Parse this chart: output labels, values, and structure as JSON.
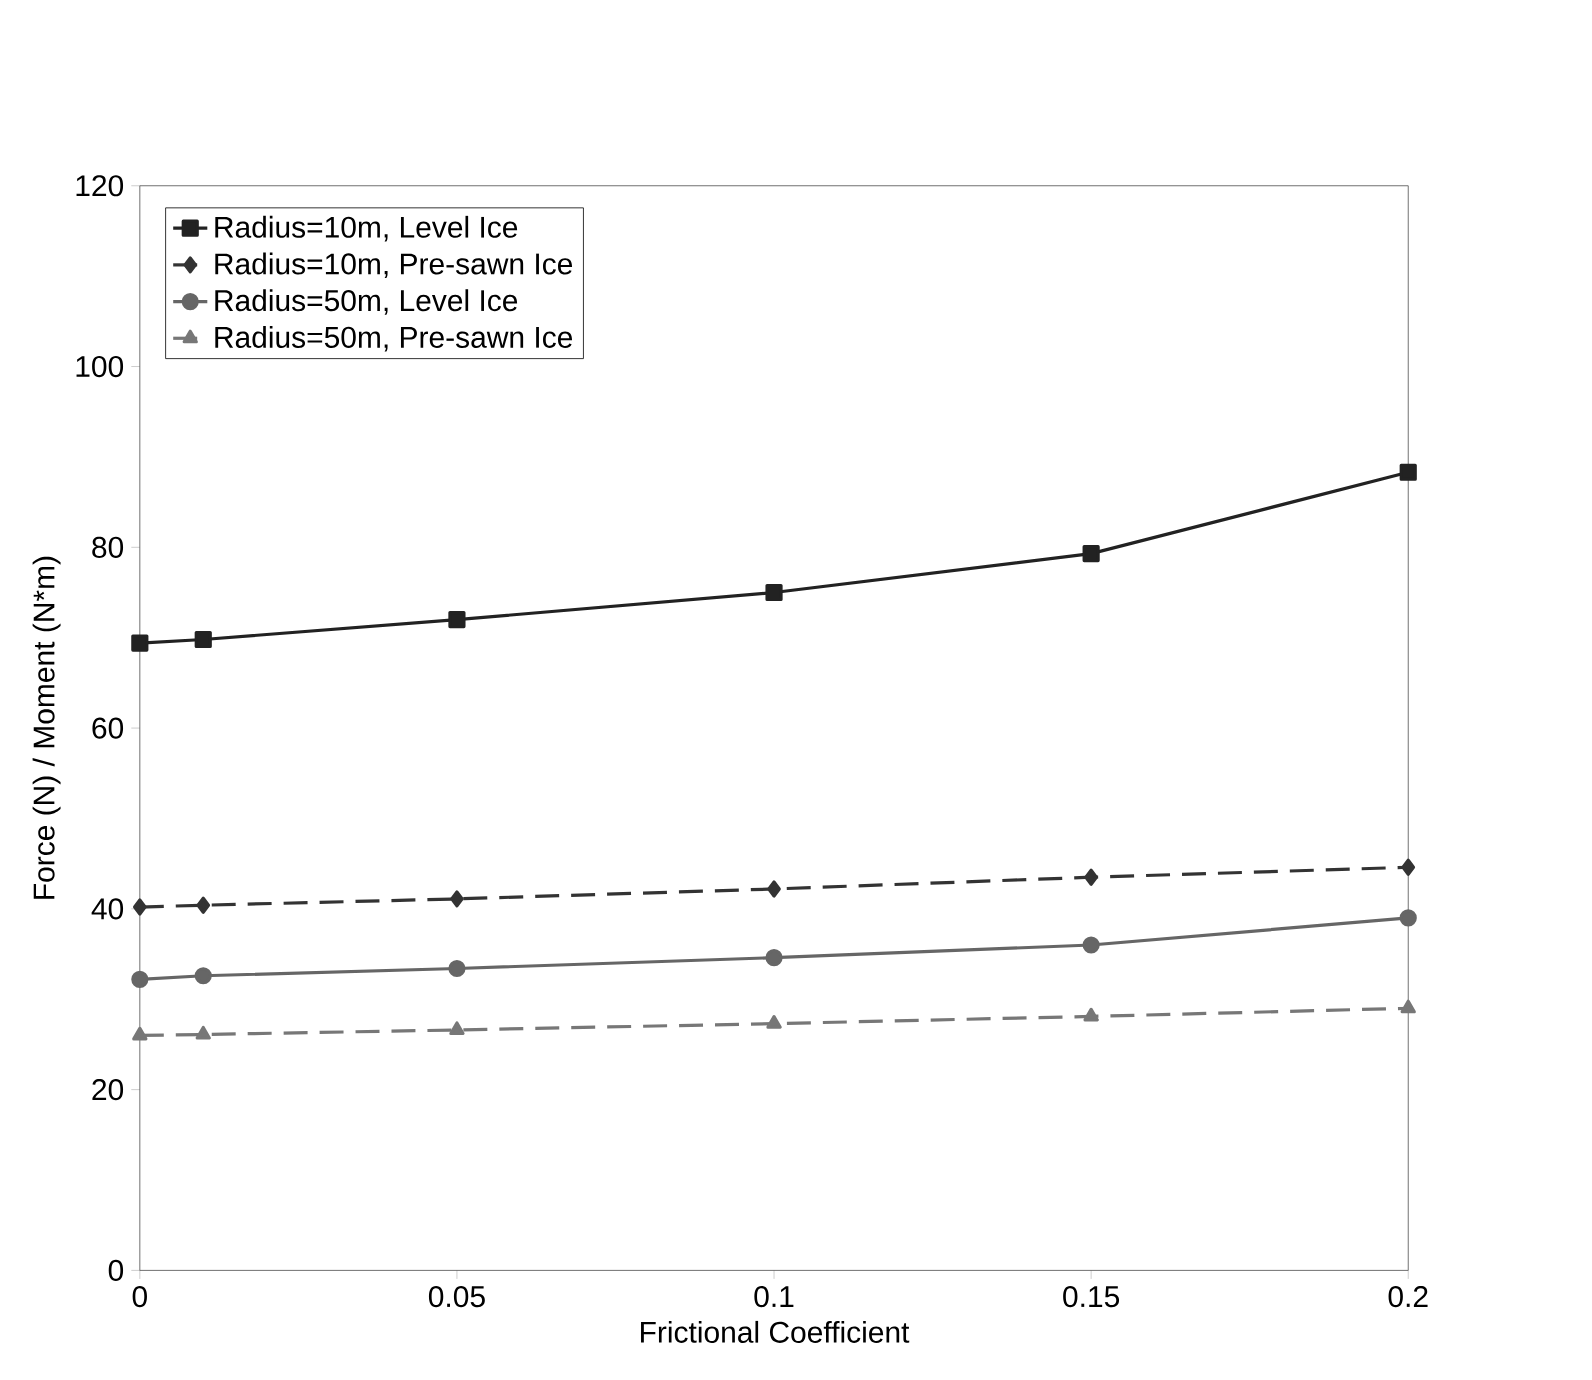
{
  "chart_data": {
    "type": "line",
    "xlabel": "Frictional Coefficient",
    "ylabel": "Force (N) / Moment (N*m)",
    "x": [
      0,
      0.01,
      0.05,
      0.1,
      0.15,
      0.2
    ],
    "xlim": [
      0,
      0.2
    ],
    "xticks": [
      0,
      0.05,
      0.1,
      0.15,
      0.2
    ],
    "ylim": [
      0,
      120
    ],
    "yticks": [
      0,
      20,
      40,
      60,
      80,
      100,
      120
    ],
    "grid": false,
    "legend": "top left",
    "series": [
      {
        "name": "Radius=10m, Level Ice",
        "color": "#222222",
        "marker": "square",
        "line_style": "solid",
        "values": [
          69.4,
          69.8,
          72,
          75,
          79.3,
          88.3
        ]
      },
      {
        "name": "Radius=10m, Pre-sawn Ice",
        "color": "#333333",
        "marker": "diamond",
        "line_style": "dashed",
        "values": [
          40.2,
          40.4,
          41.1,
          42.2,
          43.5,
          44.6
        ]
      },
      {
        "name": "Radius=50m, Level Ice",
        "color": "#666666",
        "marker": "circle",
        "line_style": "solid",
        "values": [
          32.2,
          32.6,
          33.4,
          34.6,
          36,
          39
        ]
      },
      {
        "name": "Radius=50m, Pre-sawn Ice",
        "color": "#777777",
        "marker": "triangle",
        "line_style": "dashed",
        "values": [
          26,
          26.1,
          26.6,
          27.3,
          28.1,
          29
        ]
      }
    ]
  }
}
